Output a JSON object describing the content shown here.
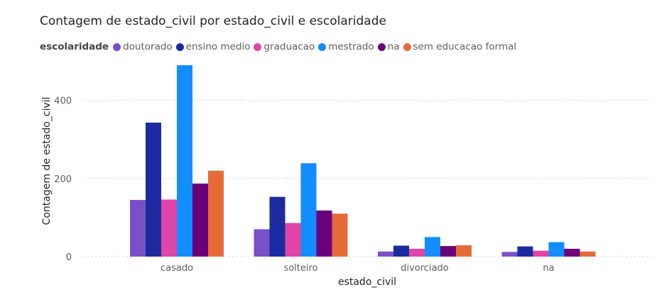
{
  "chart_data": {
    "type": "bar",
    "title": "Contagem de estado_civil por estado_civil e escolaridade",
    "legend_title": "escolaridade",
    "legend_position": "top-left",
    "xlabel": "estado_civil",
    "ylabel": "Contagem de estado_civil",
    "ylim": [
      0,
      490
    ],
    "yticks": [
      0,
      200,
      400
    ],
    "grid": true,
    "categories": [
      "casado",
      "solteiro",
      "divorciado",
      "na"
    ],
    "series": [
      {
        "name": "doutorado",
        "color": "#7b4fc7",
        "values": [
          145,
          70,
          13,
          12
        ]
      },
      {
        "name": "ensino medio",
        "color": "#1b2aa0",
        "values": [
          343,
          153,
          28,
          26
        ]
      },
      {
        "name": "graduacao",
        "color": "#e044a7",
        "values": [
          146,
          86,
          20,
          15
        ]
      },
      {
        "name": "mestrado",
        "color": "#118dff",
        "values": [
          490,
          239,
          50,
          37
        ]
      },
      {
        "name": "na",
        "color": "#6b007b",
        "values": [
          187,
          118,
          27,
          20
        ]
      },
      {
        "name": "sem educacao formal",
        "color": "#e66c37",
        "values": [
          220,
          110,
          29,
          13
        ]
      }
    ]
  }
}
